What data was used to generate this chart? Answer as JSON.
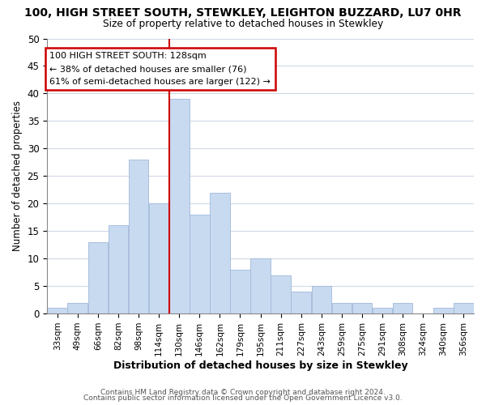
{
  "title": "100, HIGH STREET SOUTH, STEWKLEY, LEIGHTON BUZZARD, LU7 0HR",
  "subtitle": "Size of property relative to detached houses in Stewkley",
  "xlabel": "Distribution of detached houses by size in Stewkley",
  "ylabel": "Number of detached properties",
  "bar_color": "#c8daf0",
  "bar_edge_color": "#a0b8d8",
  "bins": [
    "33sqm",
    "49sqm",
    "66sqm",
    "82sqm",
    "98sqm",
    "114sqm",
    "130sqm",
    "146sqm",
    "162sqm",
    "179sqm",
    "195sqm",
    "211sqm",
    "227sqm",
    "243sqm",
    "259sqm",
    "275sqm",
    "291sqm",
    "308sqm",
    "324sqm",
    "340sqm",
    "356sqm"
  ],
  "counts": [
    1,
    2,
    13,
    16,
    28,
    20,
    39,
    18,
    22,
    8,
    10,
    7,
    4,
    5,
    2,
    2,
    1,
    2,
    0,
    1,
    2
  ],
  "ylim": [
    0,
    50
  ],
  "yticks": [
    0,
    5,
    10,
    15,
    20,
    25,
    30,
    35,
    40,
    45,
    50
  ],
  "property_line_color": "#cc0000",
  "annotation_title": "100 HIGH STREET SOUTH: 128sqm",
  "annotation_line1": "← 38% of detached houses are smaller (76)",
  "annotation_line2": "61% of semi-detached houses are larger (122) →",
  "annotation_box_color": "#ffffff",
  "annotation_box_edge": "#cc0000",
  "footer1": "Contains HM Land Registry data © Crown copyright and database right 2024.",
  "footer2": "Contains public sector information licensed under the Open Government Licence v3.0.",
  "background_color": "#ffffff",
  "grid_color": "#d0d8e8"
}
